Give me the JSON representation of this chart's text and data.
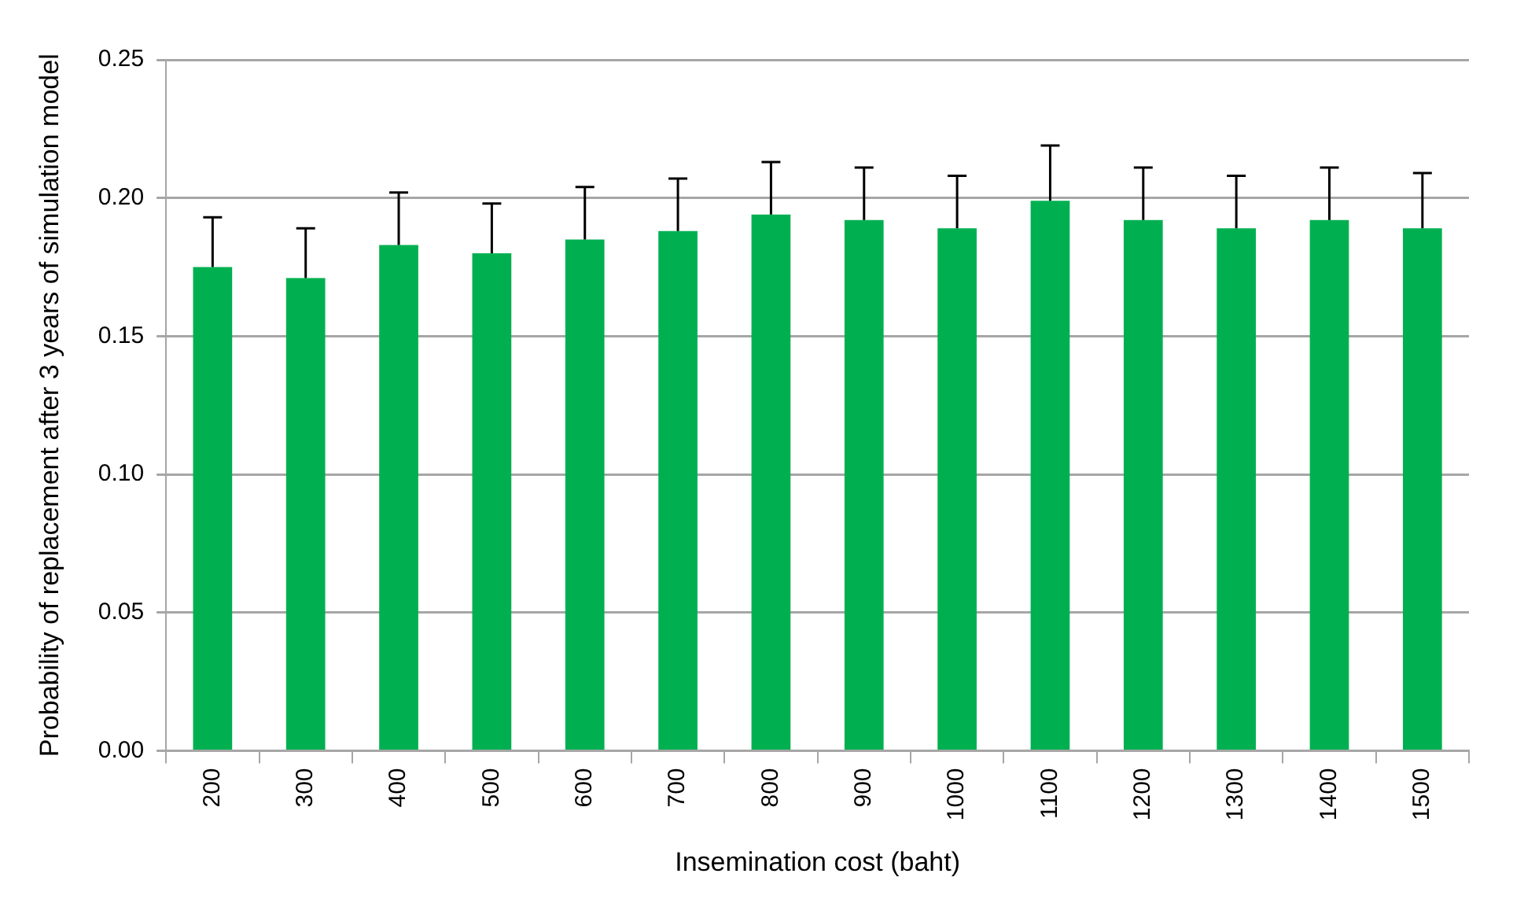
{
  "chart_data": {
    "type": "bar",
    "xlabel": "Insemination cost (baht)",
    "ylabel": "Probability of replacement after 3 years of simulation model",
    "categories": [
      "200",
      "300",
      "400",
      "500",
      "600",
      "700",
      "800",
      "900",
      "1000",
      "1100",
      "1200",
      "1300",
      "1400",
      "1500"
    ],
    "values": [
      0.175,
      0.171,
      0.183,
      0.18,
      0.185,
      0.188,
      0.194,
      0.192,
      0.189,
      0.199,
      0.192,
      0.189,
      0.192,
      0.189
    ],
    "errors": [
      [
        0.175,
        0.193
      ],
      [
        0.171,
        0.189
      ],
      [
        0.183,
        0.202
      ],
      [
        0.18,
        0.198
      ],
      [
        0.185,
        0.204
      ],
      [
        0.188,
        0.207
      ],
      [
        0.194,
        0.213
      ],
      [
        0.192,
        0.211
      ],
      [
        0.189,
        0.208
      ],
      [
        0.199,
        0.219
      ],
      [
        0.192,
        0.211
      ],
      [
        0.189,
        0.208
      ],
      [
        0.192,
        0.211
      ],
      [
        0.189,
        0.209
      ]
    ],
    "color": "#00b050",
    "ylim": [
      0,
      0.25
    ],
    "yticks": [
      {
        "value": 0,
        "label": "0.00"
      },
      {
        "value": 0.05,
        "label": "0.05"
      },
      {
        "value": 0.1,
        "label": "0.10"
      },
      {
        "value": 0.15,
        "label": "0.15"
      },
      {
        "value": 0.2,
        "label": "0.20"
      },
      {
        "value": 0.25,
        "label": "0.25"
      }
    ],
    "grid": "y",
    "legend": false
  }
}
